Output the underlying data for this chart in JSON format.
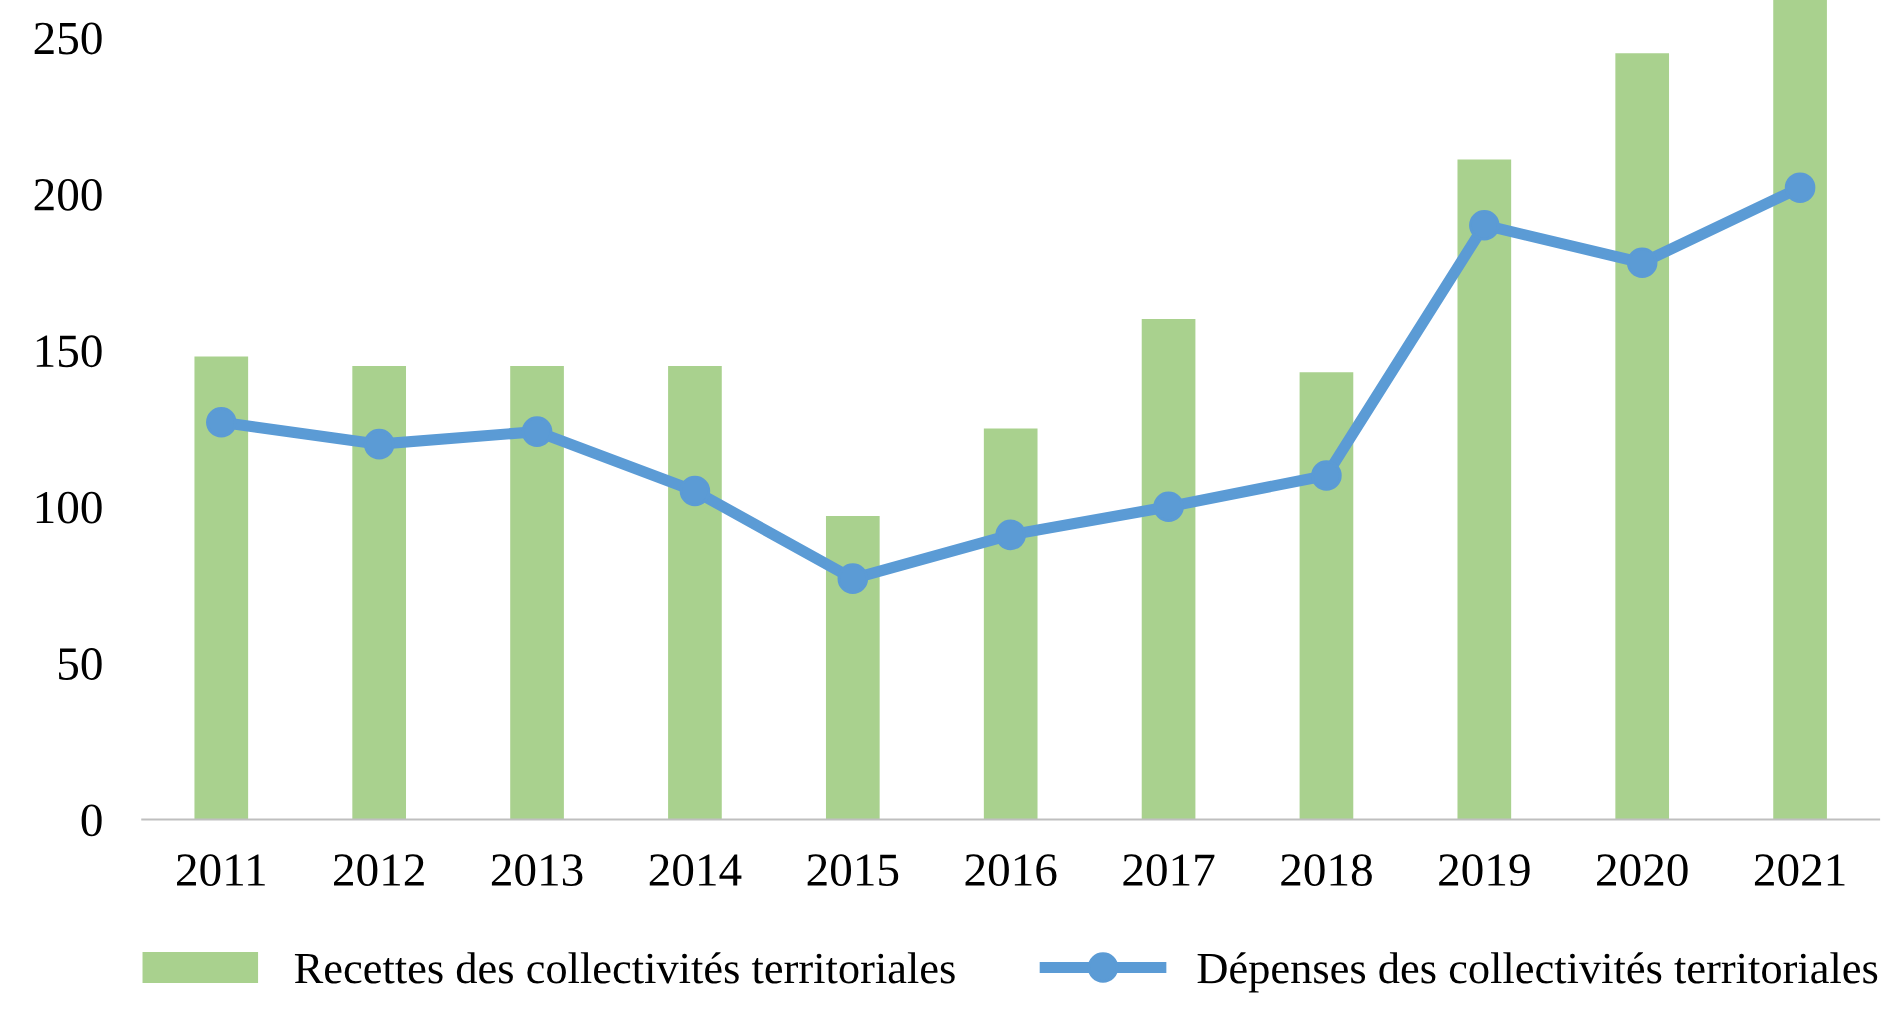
{
  "chart_data": {
    "type": "bar",
    "categories": [
      "2011",
      "2012",
      "2013",
      "2014",
      "2015",
      "2016",
      "2017",
      "2018",
      "2019",
      "2020",
      "2021"
    ],
    "series": [
      {
        "name": "Recettes des collectivités territoriales",
        "color": "#a9d18e",
        "values": [
          148,
          145,
          145,
          145,
          97,
          125,
          160,
          143,
          211,
          245,
          262
        ]
      },
      {
        "name": "Dépenses des collectivités territoriales",
        "type": "line",
        "color": "#5b9bd5",
        "marker": "circle",
        "values": [
          127,
          120,
          124,
          105,
          77,
          91,
          100,
          110,
          190,
          178,
          202
        ]
      }
    ],
    "ylim": [
      0,
      262
    ],
    "yticks": [
      0,
      50,
      100,
      150,
      200,
      250
    ],
    "grid": false,
    "legend": "bottom"
  }
}
